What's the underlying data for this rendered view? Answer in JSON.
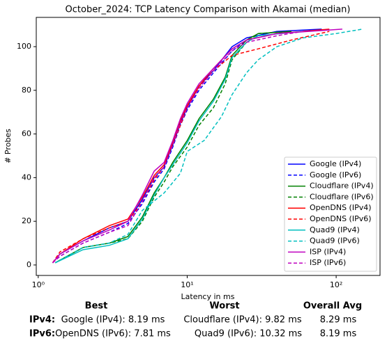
{
  "chart_data": {
    "type": "line",
    "title": "October_2024: TCP Latency Comparison with Akamai (median)",
    "xlabel": "Latency in ms",
    "ylabel": "# Probes",
    "xscale": "log",
    "xlim": [
      0.97,
      197
    ],
    "ylim": [
      -4.8,
      113.4
    ],
    "xticks": [
      {
        "value": 1,
        "label": "10⁰"
      },
      {
        "value": 10,
        "label": "10¹"
      },
      {
        "value": 100,
        "label": "10²"
      }
    ],
    "yticks": [
      0,
      20,
      40,
      60,
      80,
      100
    ],
    "legend": "lower right",
    "series": [
      {
        "name": "Google (IPv4)",
        "color": "#0000ff",
        "linestyle": "solid",
        "x": [
          1.25,
          1.4,
          2,
          3,
          4,
          5,
          6,
          7,
          8,
          9,
          10,
          12,
          15,
          20,
          25,
          40,
          80
        ],
        "values": [
          1,
          5,
          11,
          17,
          20,
          30,
          40,
          45,
          55,
          65,
          72,
          82,
          89,
          100,
          104,
          107,
          108
        ]
      },
      {
        "name": "Google (IPv6)",
        "color": "#0000ff",
        "linestyle": "dashed",
        "x": [
          1.25,
          1.4,
          2,
          3,
          4,
          5,
          6,
          7,
          8,
          9,
          10,
          12,
          15,
          20,
          25,
          40,
          50
        ],
        "values": [
          1,
          4,
          10,
          15,
          19,
          28,
          38,
          44,
          54,
          64,
          71,
          80,
          88,
          98,
          103,
          106,
          107
        ]
      },
      {
        "name": "Cloudflare (IPv4)",
        "color": "#008000",
        "linestyle": "solid",
        "x": [
          1.3,
          2,
          3,
          4,
          5,
          6,
          7,
          8,
          10,
          12,
          15,
          18,
          20,
          25,
          30,
          50
        ],
        "values": [
          1,
          8,
          10,
          13,
          22,
          33,
          40,
          47,
          57,
          67,
          76,
          86,
          96,
          103,
          106,
          107
        ]
      },
      {
        "name": "Cloudflare (IPv6)",
        "color": "#008000",
        "linestyle": "dashed",
        "x": [
          1.3,
          2,
          3,
          4,
          5,
          6,
          7,
          8,
          10,
          12,
          15,
          18,
          20,
          25,
          30,
          50
        ],
        "values": [
          1,
          8,
          10,
          12,
          20,
          31,
          38,
          45,
          54,
          64,
          72,
          83,
          94,
          102,
          106,
          107
        ]
      },
      {
        "name": "OpenDNS (IPv4)",
        "color": "#ff0000",
        "linestyle": "solid",
        "x": [
          1.25,
          1.4,
          2,
          3,
          4,
          5,
          6,
          7,
          8,
          9,
          10,
          12,
          15,
          20,
          25,
          40,
          90
        ],
        "values": [
          1,
          5,
          12,
          18,
          21,
          31,
          41,
          46,
          56,
          66,
          73,
          82,
          90,
          99,
          103,
          106,
          108
        ]
      },
      {
        "name": "OpenDNS (IPv6)",
        "color": "#ff0000",
        "linestyle": "dashed",
        "x": [
          1.25,
          1.4,
          2,
          3,
          4,
          5,
          6,
          7,
          8,
          9,
          10,
          12,
          15,
          20,
          30,
          50,
          90
        ],
        "values": [
          1,
          6,
          12,
          17,
          20,
          29,
          39,
          45,
          55,
          64,
          72,
          81,
          89,
          96,
          99,
          103,
          107
        ]
      },
      {
        "name": "Quad9 (IPv4)",
        "color": "#00bfbf",
        "linestyle": "solid",
        "x": [
          1.3,
          2,
          3,
          4,
          5,
          6,
          7,
          8,
          10,
          12,
          15,
          18,
          20,
          25,
          30,
          60
        ],
        "values": [
          1,
          7,
          9,
          12,
          21,
          32,
          40,
          46,
          56,
          66,
          75,
          85,
          95,
          102,
          105,
          107
        ]
      },
      {
        "name": "Quad9 (IPv6)",
        "color": "#00bfbf",
        "linestyle": "dashed",
        "x": [
          1.3,
          2,
          3,
          4,
          5,
          7,
          9,
          10,
          13,
          17,
          20,
          25,
          30,
          40,
          60,
          100,
          150
        ],
        "values": [
          1,
          8,
          10,
          14,
          25,
          33,
          42,
          52,
          57,
          68,
          78,
          88,
          94,
          100,
          104,
          106,
          108
        ]
      },
      {
        "name": "ISP (IPv4)",
        "color": "#bf00bf",
        "linestyle": "solid",
        "x": [
          1.25,
          1.4,
          2,
          3,
          4,
          5,
          6,
          7,
          8,
          9,
          10,
          12,
          15,
          20,
          25,
          40,
          110
        ],
        "values": [
          1,
          5,
          11,
          16,
          20,
          32,
          43,
          47,
          57,
          67,
          74,
          83,
          90,
          99,
          103,
          106,
          108
        ]
      },
      {
        "name": "ISP (IPv6)",
        "color": "#bf00bf",
        "linestyle": "dashed",
        "x": [
          1.25,
          1.4,
          2,
          3,
          4,
          5,
          6,
          7,
          8,
          9,
          10,
          12,
          15,
          20,
          25,
          40,
          60
        ],
        "values": [
          1,
          4,
          10,
          15,
          18,
          29,
          40,
          45,
          55,
          65,
          72,
          81,
          89,
          98,
          102,
          105,
          107
        ]
      }
    ]
  },
  "table": {
    "columns": [
      "Best",
      "Worst",
      "Overall Avg"
    ],
    "rows": [
      [
        "IPv4:",
        "Google (IPv4): 8.19 ms",
        "Cloudflare (IPv4): 9.82 ms",
        "8.29 ms"
      ],
      [
        "IPv6:",
        "OpenDNS (IPv6): 7.81 ms",
        "Quad9 (IPv6): 10.32 ms",
        "8.19 ms"
      ]
    ]
  }
}
